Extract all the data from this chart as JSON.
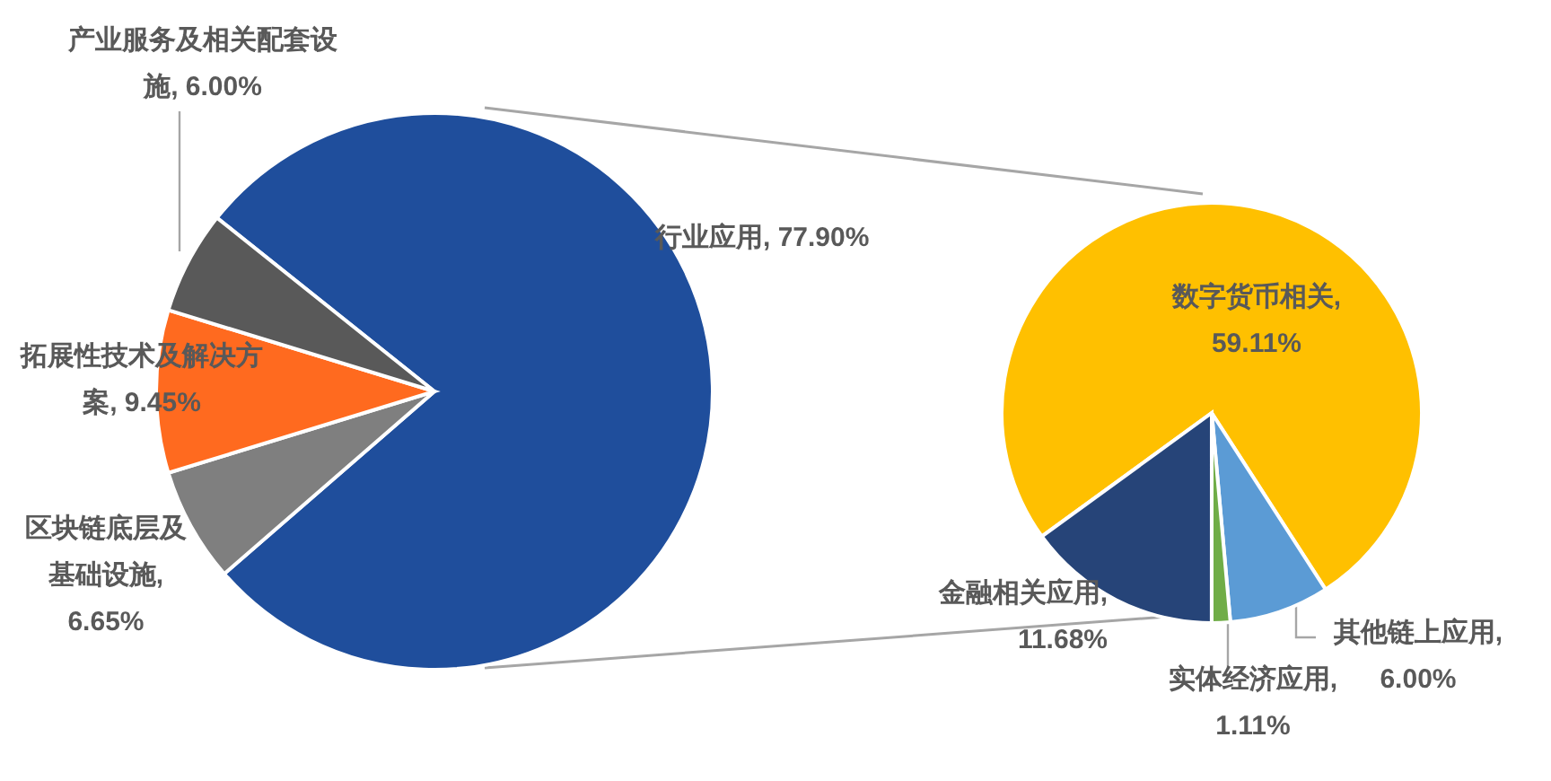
{
  "chart_data": [
    {
      "type": "pie",
      "categories": [
        "行业应用",
        "区块链底层及基础设施",
        "拓展性技术及解决方案",
        "产业服务及相关配套设施"
      ],
      "values": [
        77.9,
        6.65,
        9.45,
        6.0
      ],
      "colors": [
        "#1f4e9c",
        "#7f7f7f",
        "#ff6a1f",
        "#595959"
      ],
      "value_labels": [
        ", 77.90%",
        ", 6.65%",
        ", 9.45%",
        ", 6.00%"
      ]
    },
    {
      "type": "pie",
      "categories": [
        "数字货币相关",
        "其他链上应用",
        "实体经济应用",
        "金融相关应用"
      ],
      "values": [
        59.11,
        6.0,
        1.11,
        11.68
      ],
      "colors": [
        "#ffc000",
        "#5b9bd5",
        "#70ad47",
        "#264478"
      ],
      "value_labels": [
        ", 59.11%",
        ", 6.00%",
        ", 1.11%",
        ", 11.68%"
      ]
    }
  ]
}
